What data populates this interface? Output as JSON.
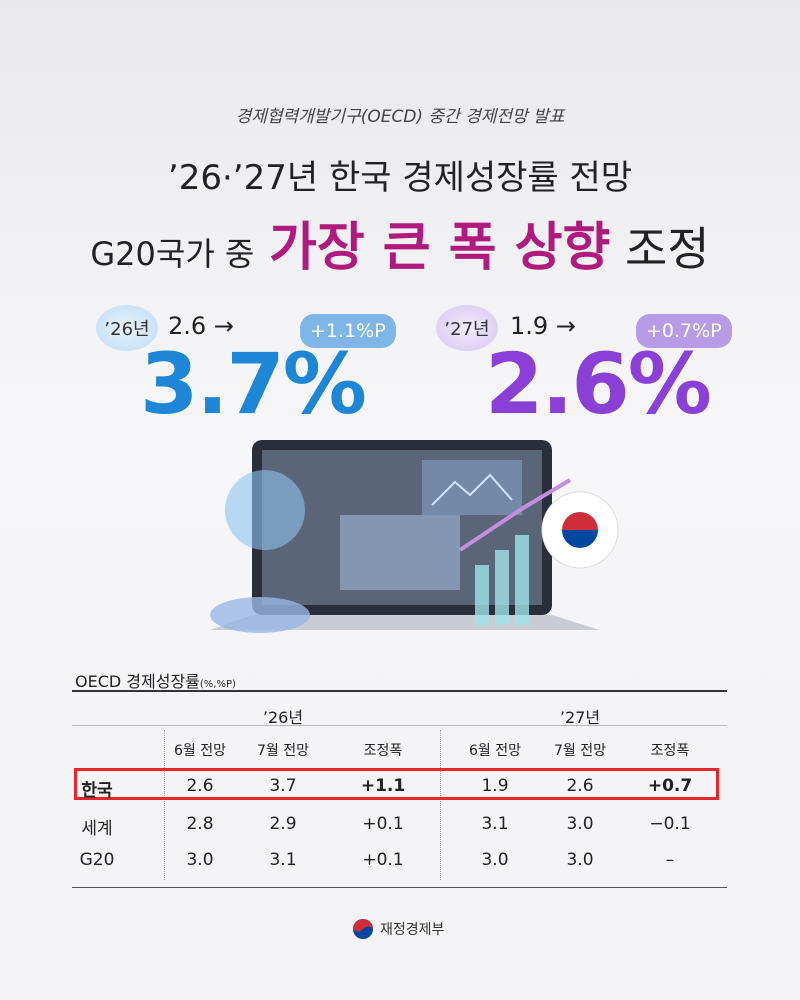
{
  "header": {
    "subtitle": "경제협력개발기구(OECD) 중간 경제전망 발표",
    "title_line1": "’26·’27년 한국 경제성장률 전망",
    "title_line2_prefix": "G20국가 중",
    "title_line2_highlight": "가장 큰 폭 상향",
    "title_line2_suffix": "조정"
  },
  "highlights": [
    {
      "year": "’26년",
      "previous": "2.6 →",
      "change": "+1.1%P",
      "value": "3.7%"
    },
    {
      "year": "’27년",
      "previous": "1.9 →",
      "change": "+0.7%P",
      "value": "2.6%"
    }
  ],
  "table": {
    "title": "OECD 경제성장률",
    "unit": "(%,%P)",
    "year_headers": [
      "’26년",
      "’27년"
    ],
    "column_headers": [
      "6월 전망",
      "7월 전망",
      "조정폭",
      "6월 전망",
      "7월 전망",
      "조정폭"
    ],
    "rows": [
      [
        "한국",
        "2.6",
        "3.7",
        "+1.1",
        "1.9",
        "2.6",
        "+0.7"
      ],
      [
        "세계",
        "2.8",
        "2.9",
        "+0.1",
        "3.1",
        "3.0",
        "−0.1"
      ],
      [
        "G20",
        "3.0",
        "3.1",
        "+0.1",
        "3.0",
        "3.0",
        "–"
      ]
    ]
  },
  "footer": {
    "logo_text": "재정경제부"
  }
}
